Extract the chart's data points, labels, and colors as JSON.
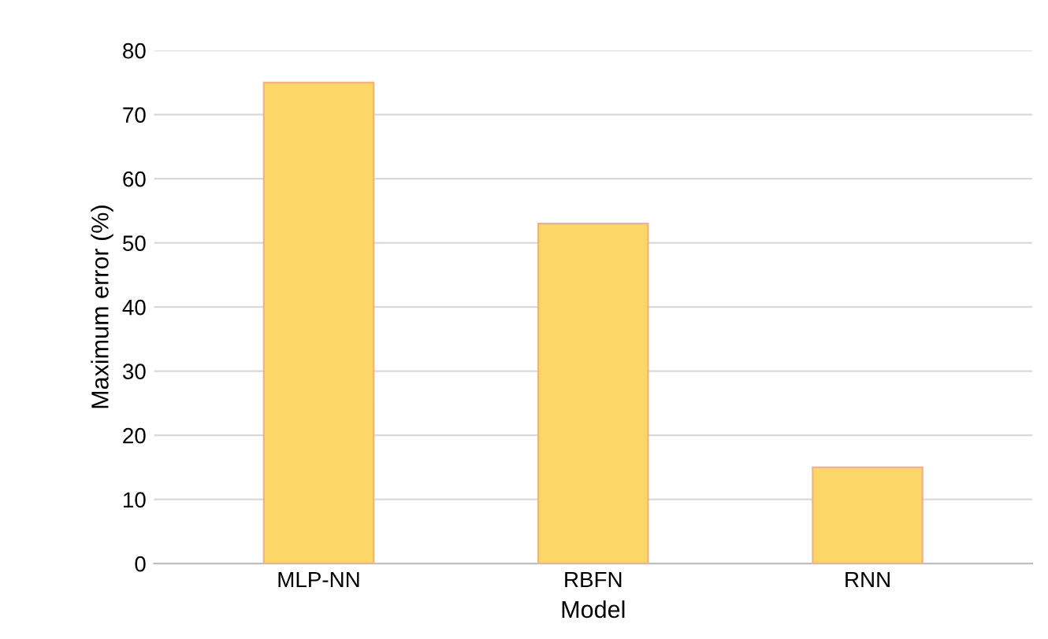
{
  "chart_data": {
    "type": "bar",
    "xlabel": "Model",
    "ylabel": "Maximum error (%)",
    "categories": [
      "MLP-NN",
      "RBFN",
      "RNN"
    ],
    "values": [
      75,
      53,
      15
    ],
    "color": "#fcd667",
    "ylim": [
      0,
      80
    ],
    "yticks": [
      0,
      10,
      20,
      30,
      40,
      50,
      60,
      70,
      80
    ],
    "grid": "y",
    "legend": false
  }
}
